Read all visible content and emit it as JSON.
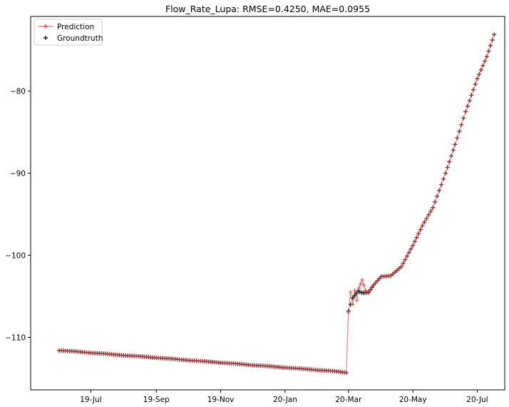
{
  "chart_data": {
    "type": "line",
    "title": "Flow_Rate_Lupa: RMSE=0.4250, MAE=0.0955",
    "xlabel": "",
    "ylabel": "",
    "x_tick_labels": [
      "19-Jul",
      "19-Sep",
      "19-Nov",
      "20-Jan",
      "20-Mar",
      "20-May",
      "20-Jul"
    ],
    "x_tick_dates": [
      "2019-07-01",
      "2019-09-01",
      "2019-11-01",
      "2020-01-01",
      "2020-03-01",
      "2020-05-01",
      "2020-07-01"
    ],
    "xlim": [
      "2019-05-05",
      "2020-07-27"
    ],
    "ylim": [
      -116.4,
      -70.9
    ],
    "y_ticks": [
      -110,
      -100,
      -90,
      -80
    ],
    "grid": false,
    "legend": {
      "position": "top-left"
    },
    "series": [
      {
        "name": "Prediction",
        "color": "#e03030",
        "style": "line-with-plus-markers"
      },
      {
        "name": "Groundtruth",
        "color": "#222222",
        "style": "plus-markers"
      }
    ],
    "groundtruth_points": [
      [
        "2019-06-01",
        -111.6
      ],
      [
        "2019-06-15",
        -111.7
      ],
      [
        "2019-07-01",
        -111.9
      ],
      [
        "2019-07-15",
        -112.0
      ],
      [
        "2019-08-01",
        -112.2
      ],
      [
        "2019-08-15",
        -112.3
      ],
      [
        "2019-09-01",
        -112.5
      ],
      [
        "2019-09-15",
        -112.6
      ],
      [
        "2019-10-01",
        -112.8
      ],
      [
        "2019-10-15",
        -112.9
      ],
      [
        "2019-11-01",
        -113.1
      ],
      [
        "2019-11-15",
        -113.2
      ],
      [
        "2019-12-01",
        -113.4
      ],
      [
        "2019-12-15",
        -113.5
      ],
      [
        "2020-01-01",
        -113.7
      ],
      [
        "2020-01-15",
        -113.8
      ],
      [
        "2020-02-01",
        -114.0
      ],
      [
        "2020-02-15",
        -114.1
      ],
      [
        "2020-02-28",
        -114.3
      ],
      [
        "2020-03-01",
        -106.8
      ],
      [
        "2020-03-05",
        -105.2
      ],
      [
        "2020-03-10",
        -104.4
      ],
      [
        "2020-03-15",
        -104.6
      ],
      [
        "2020-03-20",
        -104.5
      ],
      [
        "2020-03-25",
        -103.6
      ],
      [
        "2020-04-01",
        -102.6
      ],
      [
        "2020-04-10",
        -102.5
      ],
      [
        "2020-04-20",
        -101.4
      ],
      [
        "2020-05-01",
        -98.8
      ],
      [
        "2020-05-10",
        -96.4
      ],
      [
        "2020-05-20",
        -94.2
      ],
      [
        "2020-06-01",
        -90.0
      ],
      [
        "2020-06-10",
        -86.5
      ],
      [
        "2020-06-20",
        -82.5
      ],
      [
        "2020-07-01",
        -78.5
      ],
      [
        "2020-07-10",
        -75.8
      ],
      [
        "2020-07-17",
        -73.1
      ]
    ],
    "prediction_points": [
      [
        "2019-06-01",
        -111.6
      ],
      [
        "2019-06-15",
        -111.7
      ],
      [
        "2019-07-01",
        -111.9
      ],
      [
        "2019-07-15",
        -112.0
      ],
      [
        "2019-08-01",
        -112.2
      ],
      [
        "2019-08-15",
        -112.3
      ],
      [
        "2019-09-01",
        -112.5
      ],
      [
        "2019-09-15",
        -112.6
      ],
      [
        "2019-10-01",
        -112.8
      ],
      [
        "2019-10-15",
        -112.9
      ],
      [
        "2019-11-01",
        -113.1
      ],
      [
        "2019-11-15",
        -113.2
      ],
      [
        "2019-12-01",
        -113.4
      ],
      [
        "2019-12-15",
        -113.5
      ],
      [
        "2020-01-01",
        -113.7
      ],
      [
        "2020-01-15",
        -113.8
      ],
      [
        "2020-02-01",
        -114.0
      ],
      [
        "2020-02-15",
        -114.1
      ],
      [
        "2020-02-28",
        -114.3
      ],
      [
        "2020-03-01",
        -107.0
      ],
      [
        "2020-03-03",
        -104.5
      ],
      [
        "2020-03-05",
        -106.0
      ],
      [
        "2020-03-07",
        -104.3
      ],
      [
        "2020-03-09",
        -105.5
      ],
      [
        "2020-03-11",
        -104.0
      ],
      [
        "2020-03-14",
        -103.0
      ],
      [
        "2020-03-17",
        -104.3
      ],
      [
        "2020-03-20",
        -104.6
      ],
      [
        "2020-03-25",
        -103.6
      ],
      [
        "2020-04-01",
        -102.6
      ],
      [
        "2020-04-10",
        -102.5
      ],
      [
        "2020-04-20",
        -101.4
      ],
      [
        "2020-05-01",
        -98.8
      ],
      [
        "2020-05-10",
        -96.4
      ],
      [
        "2020-05-20",
        -94.2
      ],
      [
        "2020-06-01",
        -90.0
      ],
      [
        "2020-06-10",
        -86.5
      ],
      [
        "2020-06-20",
        -82.5
      ],
      [
        "2020-07-01",
        -78.5
      ],
      [
        "2020-07-10",
        -75.8
      ],
      [
        "2020-07-17",
        -73.1
      ]
    ]
  }
}
